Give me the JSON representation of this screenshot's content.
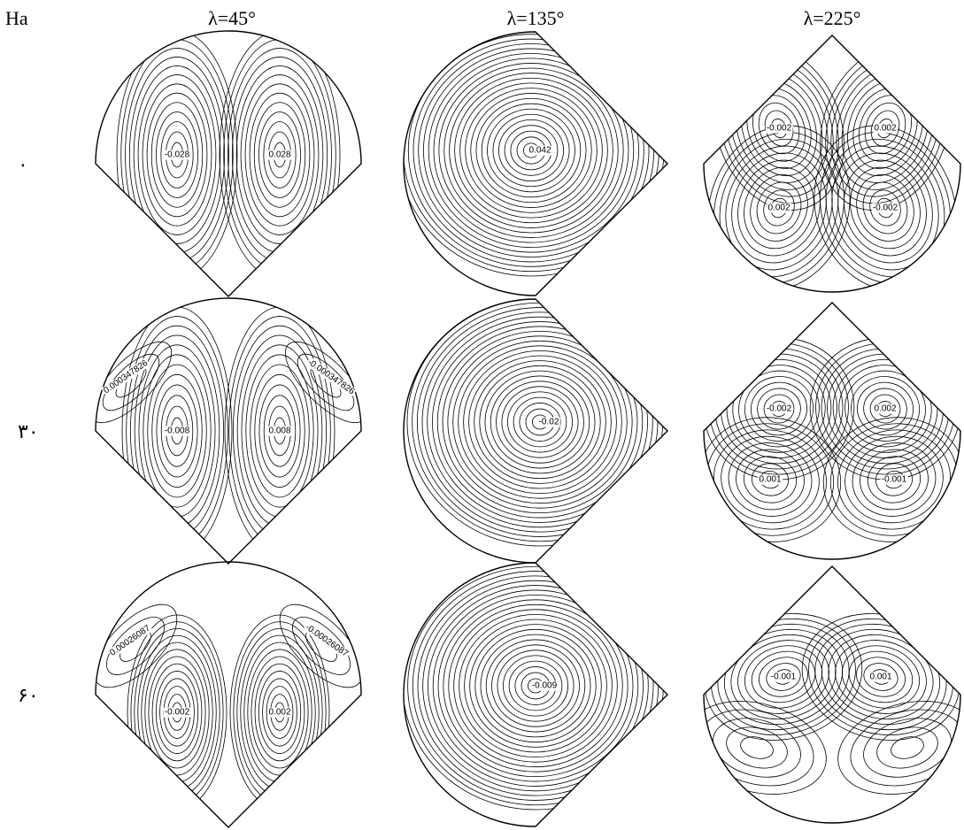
{
  "header": {
    "row_label": "Ha",
    "columns": [
      "λ=45°",
      "λ=135°",
      "λ=225°"
    ]
  },
  "rows": [
    {
      "label": "۰",
      "panels": [
        {
          "labels": [
            "-0.028",
            "0.028"
          ]
        },
        {
          "labels": [
            "0.042"
          ]
        },
        {
          "labels": [
            "-0.002",
            "0.002",
            "0.002",
            "-0.002"
          ]
        }
      ]
    },
    {
      "label": "۳۰",
      "panels": [
        {
          "labels": [
            "-0.008",
            "0.008",
            "0.000347826",
            "-0.000347826"
          ]
        },
        {
          "labels": [
            "-0.02"
          ]
        },
        {
          "labels": [
            "-0.002",
            "0.002",
            "0.001",
            "-0.001"
          ]
        }
      ]
    },
    {
      "label": "۶۰",
      "panels": [
        {
          "labels": [
            "-0.002",
            "0.002",
            "0.00026087",
            "-0.00026087"
          ]
        },
        {
          "labels": [
            "-0.009"
          ]
        },
        {
          "labels": [
            "-0.001",
            "0.001"
          ]
        }
      ]
    }
  ]
}
